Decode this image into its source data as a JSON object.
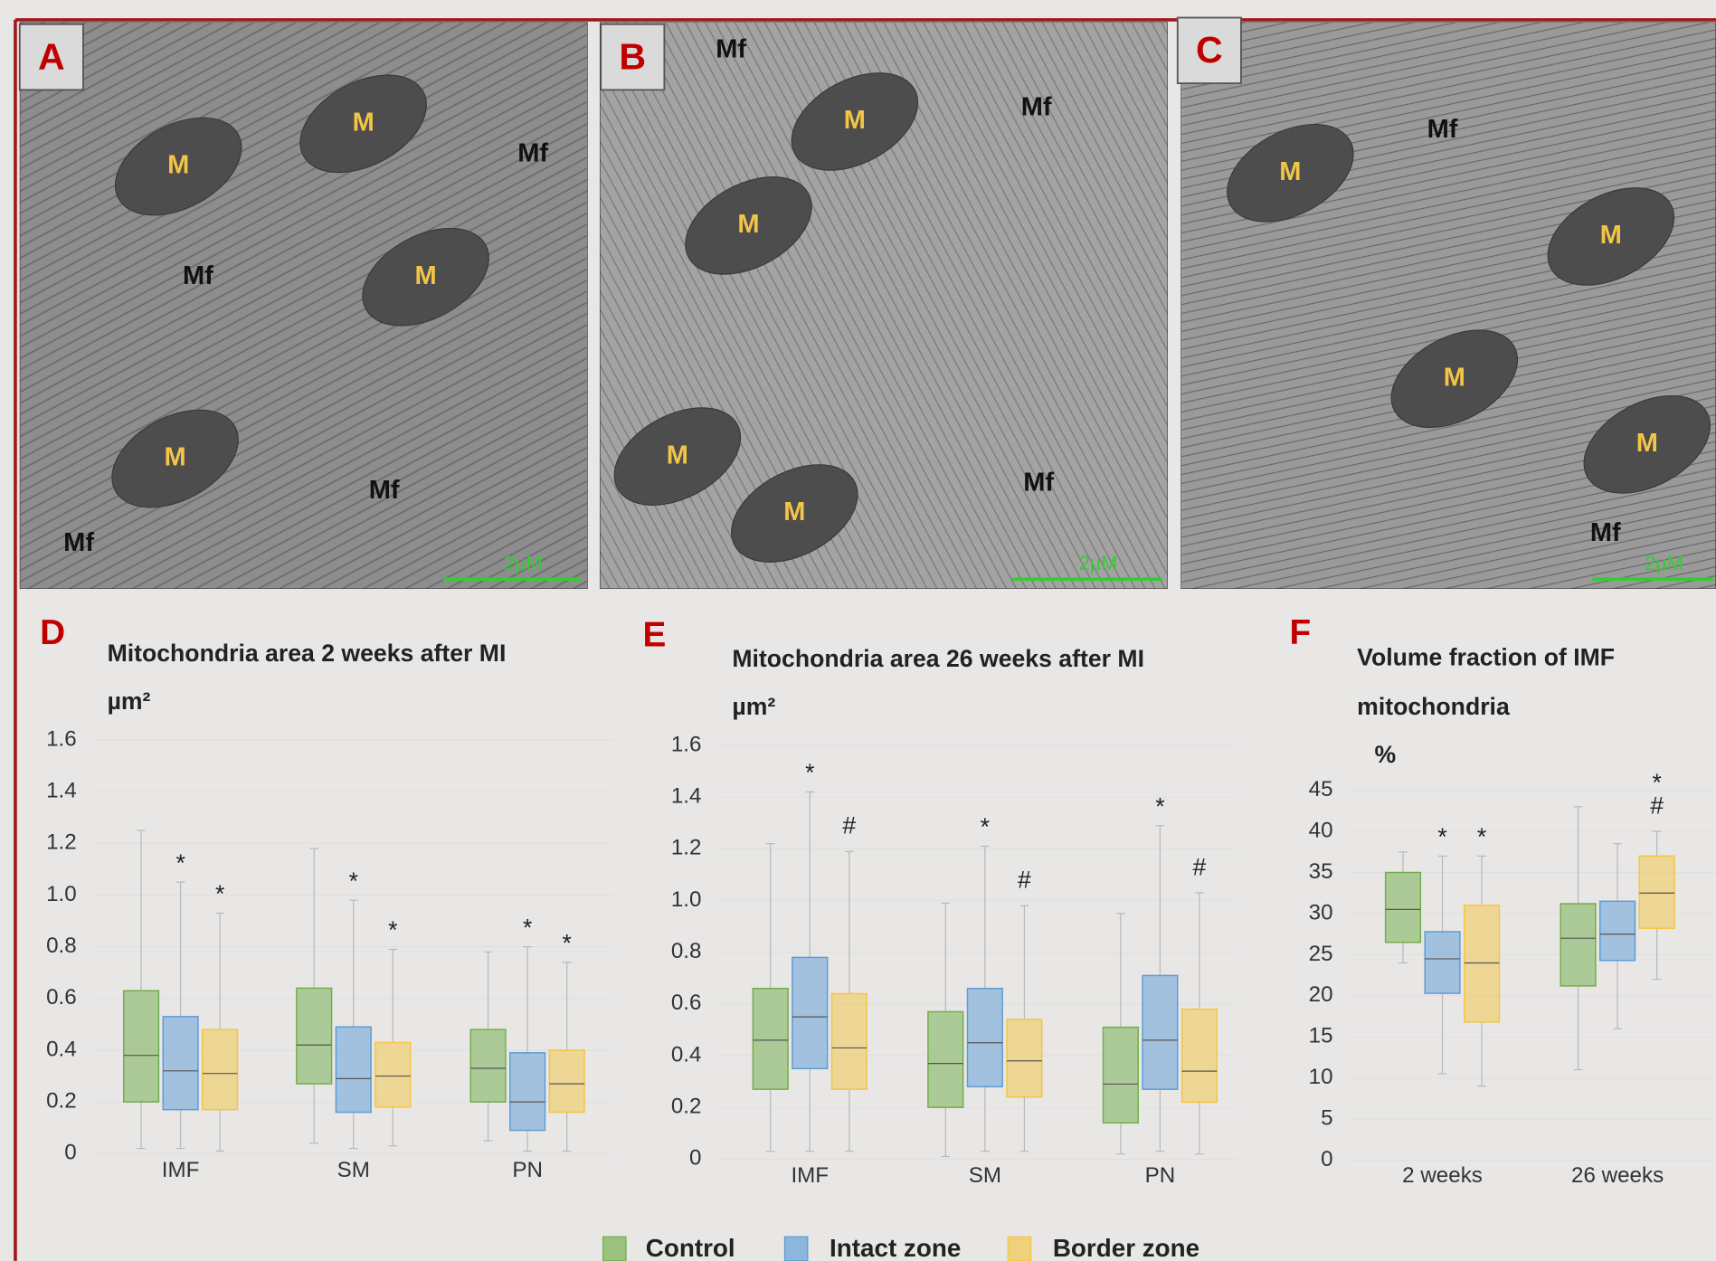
{
  "image_panels": [
    {
      "letter": "A",
      "labels": [
        "M",
        "M",
        "M",
        "M",
        "Mf",
        "Mf",
        "Mf",
        "Mf"
      ],
      "scale_bar": "2µM"
    },
    {
      "letter": "B",
      "labels": [
        "Mf",
        "M",
        "Mf",
        "M",
        "M",
        "M",
        "Mf"
      ],
      "scale_bar": "2µM"
    },
    {
      "letter": "C",
      "labels": [
        "Mf",
        "M",
        "M",
        "M",
        "M",
        "Mf"
      ],
      "scale_bar": "2µM"
    }
  ],
  "chart_data": [
    {
      "type": "box",
      "panel_label": "D",
      "title": "Mitochondria area 2 weeks after MI",
      "ylabel": "µm²",
      "categories": [
        "IMF",
        "SM",
        "PN"
      ],
      "ylim": [
        0,
        1.6
      ],
      "yticks": [
        0,
        0.2,
        0.4,
        0.6,
        0.8,
        {
          "value": 1,
          "label": "1.0"
        },
        1.2,
        1.4,
        1.6
      ],
      "grid": true,
      "series": [
        {
          "name": "Control",
          "color": "#70ad47",
          "min": [
            0.02,
            0.04,
            0.05
          ],
          "q1": [
            0.2,
            0.27,
            0.2
          ],
          "median": [
            0.38,
            0.42,
            0.33
          ],
          "q3": [
            0.63,
            0.64,
            0.48
          ],
          "max": [
            1.25,
            1.18,
            0.78
          ],
          "marks": [
            null,
            null,
            null
          ]
        },
        {
          "name": "Intact zone",
          "color": "#5b9bd5",
          "min": [
            0.02,
            0.02,
            0.01
          ],
          "q1": [
            0.17,
            0.16,
            0.09
          ],
          "median": [
            0.32,
            0.29,
            0.2
          ],
          "q3": [
            0.53,
            0.49,
            0.39
          ],
          "max": [
            1.05,
            0.98,
            0.8
          ],
          "marks": [
            [
              "*"
            ],
            [
              "*"
            ],
            [
              "*"
            ]
          ]
        },
        {
          "name": "Border zone",
          "color": "#f4c542",
          "min": [
            0.01,
            0.03,
            0.01
          ],
          "q1": [
            0.17,
            0.18,
            0.16
          ],
          "median": [
            0.31,
            0.3,
            0.27
          ],
          "q3": [
            0.48,
            0.43,
            0.4
          ],
          "max": [
            0.93,
            0.79,
            0.74
          ],
          "marks": [
            [
              "*"
            ],
            [
              "*"
            ],
            [
              "*"
            ]
          ]
        }
      ]
    },
    {
      "type": "box",
      "panel_label": "E",
      "title": "Mitochondria area 26 weeks after MI",
      "ylabel": "µm²",
      "categories": [
        "IMF",
        "SM",
        "PN"
      ],
      "ylim": [
        0,
        1.6
      ],
      "yticks": [
        0,
        0.2,
        0.4,
        0.6,
        0.8,
        {
          "value": 1,
          "label": "1.0"
        },
        1.2,
        1.4,
        1.6
      ],
      "grid": true,
      "series": [
        {
          "name": "Control",
          "color": "#70ad47",
          "min": [
            0.03,
            0.01,
            0.02
          ],
          "q1": [
            0.27,
            0.2,
            0.14
          ],
          "median": [
            0.46,
            0.37,
            0.29
          ],
          "q3": [
            0.66,
            0.57,
            0.51
          ],
          "max": [
            1.22,
            0.99,
            0.95
          ],
          "marks": [
            null,
            null,
            null
          ]
        },
        {
          "name": "Intact zone",
          "color": "#5b9bd5",
          "min": [
            0.03,
            0.03,
            0.03
          ],
          "q1": [
            0.35,
            0.28,
            0.27
          ],
          "median": [
            0.55,
            0.45,
            0.46
          ],
          "q3": [
            0.78,
            0.66,
            0.71
          ],
          "max": [
            1.42,
            1.21,
            1.29
          ],
          "marks": [
            [
              "*"
            ],
            [
              "*"
            ],
            [
              "*"
            ]
          ]
        },
        {
          "name": "Border zone",
          "color": "#f4c542",
          "min": [
            0.03,
            0.03,
            0.02
          ],
          "q1": [
            0.27,
            0.24,
            0.22
          ],
          "median": [
            0.43,
            0.38,
            0.34
          ],
          "q3": [
            0.64,
            0.54,
            0.58
          ],
          "max": [
            1.19,
            0.98,
            1.03
          ],
          "marks": [
            [
              "#"
            ],
            [
              "#"
            ],
            [
              "#"
            ]
          ]
        }
      ]
    },
    {
      "type": "box",
      "panel_label": "F",
      "title": "Volume fraction of IMF mitochondria",
      "ylabel": "%",
      "categories": [
        "2 weeks",
        "26 weeks"
      ],
      "ylim": [
        0,
        45
      ],
      "yticks": [
        0,
        5,
        10,
        15,
        20,
        25,
        30,
        35,
        40,
        45
      ],
      "grid": true,
      "series": [
        {
          "name": "Control",
          "color": "#70ad47",
          "min": [
            24,
            11
          ],
          "q1": [
            26.5,
            21.2
          ],
          "median": [
            30.5,
            27
          ],
          "q3": [
            35,
            31.2
          ],
          "max": [
            37.5,
            43
          ],
          "marks": [
            null,
            null
          ]
        },
        {
          "name": "Intact zone",
          "color": "#5b9bd5",
          "min": [
            10.5,
            16
          ],
          "q1": [
            20.3,
            24.3
          ],
          "median": [
            24.5,
            27.5
          ],
          "q3": [
            27.8,
            31.5
          ],
          "max": [
            37,
            38.5
          ],
          "marks": [
            [
              "*"
            ],
            null
          ]
        },
        {
          "name": "Border zone",
          "color": "#f4c542",
          "min": [
            9,
            22
          ],
          "q1": [
            16.8,
            28.2
          ],
          "median": [
            24,
            32.5
          ],
          "q3": [
            31,
            37
          ],
          "max": [
            37,
            40
          ],
          "marks": [
            [
              "*"
            ],
            [
              "*",
              "#"
            ]
          ]
        }
      ]
    }
  ]
}
